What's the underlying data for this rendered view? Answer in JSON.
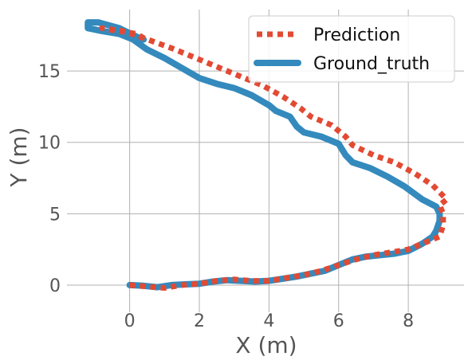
{
  "chart_data": {
    "type": "line",
    "xlabel": "X (m)",
    "ylabel": "Y (m)",
    "xlim": [
      -1.8,
      9.6
    ],
    "ylim": [
      -1.9,
      19.3
    ],
    "xticks": [
      0,
      2,
      4,
      6,
      8
    ],
    "yticks": [
      0,
      5,
      10,
      15
    ],
    "grid": true,
    "legend_position": "top-right",
    "series": [
      {
        "name": "Prediction",
        "style": "dotted",
        "color": "#E24A33",
        "x": [
          0,
          0.5,
          1.0,
          1.5,
          2.0,
          2.5,
          3.0,
          3.5,
          4.0,
          4.5,
          5.0,
          5.5,
          6.0,
          6.5,
          7.0,
          7.5,
          8.0,
          8.5,
          8.9,
          9.0,
          9.0,
          8.9,
          9.1,
          8.7,
          8.2,
          7.6,
          7.0,
          6.4,
          6.2,
          5.8,
          5.2,
          4.9,
          4.4,
          3.8,
          3.0,
          2.0,
          1.2,
          0.4,
          -0.2,
          -0.8,
          -0.6,
          0.2,
          0.4
        ],
        "y": [
          0,
          -0.1,
          -0.2,
          0.0,
          0.1,
          0.3,
          0.4,
          0.3,
          0.3,
          0.5,
          0.7,
          1.0,
          1.4,
          1.8,
          2.1,
          2.3,
          2.5,
          3.0,
          3.4,
          4.2,
          5.0,
          5.6,
          6.0,
          7.0,
          7.8,
          8.6,
          9.1,
          9.8,
          10.4,
          11.2,
          11.8,
          12.4,
          13.2,
          14.0,
          14.8,
          15.8,
          16.6,
          17.3,
          17.8,
          18.0,
          17.9,
          17.6,
          17.3
        ]
      },
      {
        "name": "Ground_truth",
        "style": "solid",
        "color": "#348ABD",
        "x": [
          0,
          0.4,
          0.8,
          1.2,
          1.6,
          2.0,
          2.4,
          2.8,
          3.2,
          3.6,
          4.0,
          4.4,
          4.8,
          5.2,
          5.6,
          6.0,
          6.4,
          6.8,
          7.2,
          7.6,
          8.0,
          8.4,
          8.7,
          8.8,
          8.9,
          8.9,
          8.8,
          8.4,
          7.9,
          7.4,
          6.9,
          6.4,
          6.2,
          6.0,
          5.5,
          5.0,
          4.8,
          4.6,
          4.2,
          4.0,
          3.5,
          3.0,
          2.5,
          2.0,
          1.5,
          1.0,
          0.5,
          0.1,
          -0.3,
          -0.8,
          -1.2,
          -1.2,
          -0.9,
          -0.3,
          0.2,
          0.4
        ],
        "y": [
          0,
          -0.05,
          -0.15,
          0.0,
          0.05,
          0.1,
          0.25,
          0.35,
          0.3,
          0.25,
          0.3,
          0.45,
          0.6,
          0.8,
          1.0,
          1.4,
          1.8,
          2.0,
          2.1,
          2.2,
          2.4,
          2.9,
          3.4,
          3.8,
          4.5,
          5.0,
          5.5,
          6.0,
          6.9,
          7.6,
          8.2,
          8.6,
          9.1,
          9.9,
          10.4,
          10.7,
          11.1,
          11.8,
          12.2,
          12.6,
          13.3,
          13.8,
          14.1,
          14.5,
          15.2,
          15.9,
          16.5,
          17.2,
          17.6,
          17.8,
          18.0,
          18.4,
          18.4,
          18.0,
          17.4,
          17.2
        ]
      }
    ]
  }
}
